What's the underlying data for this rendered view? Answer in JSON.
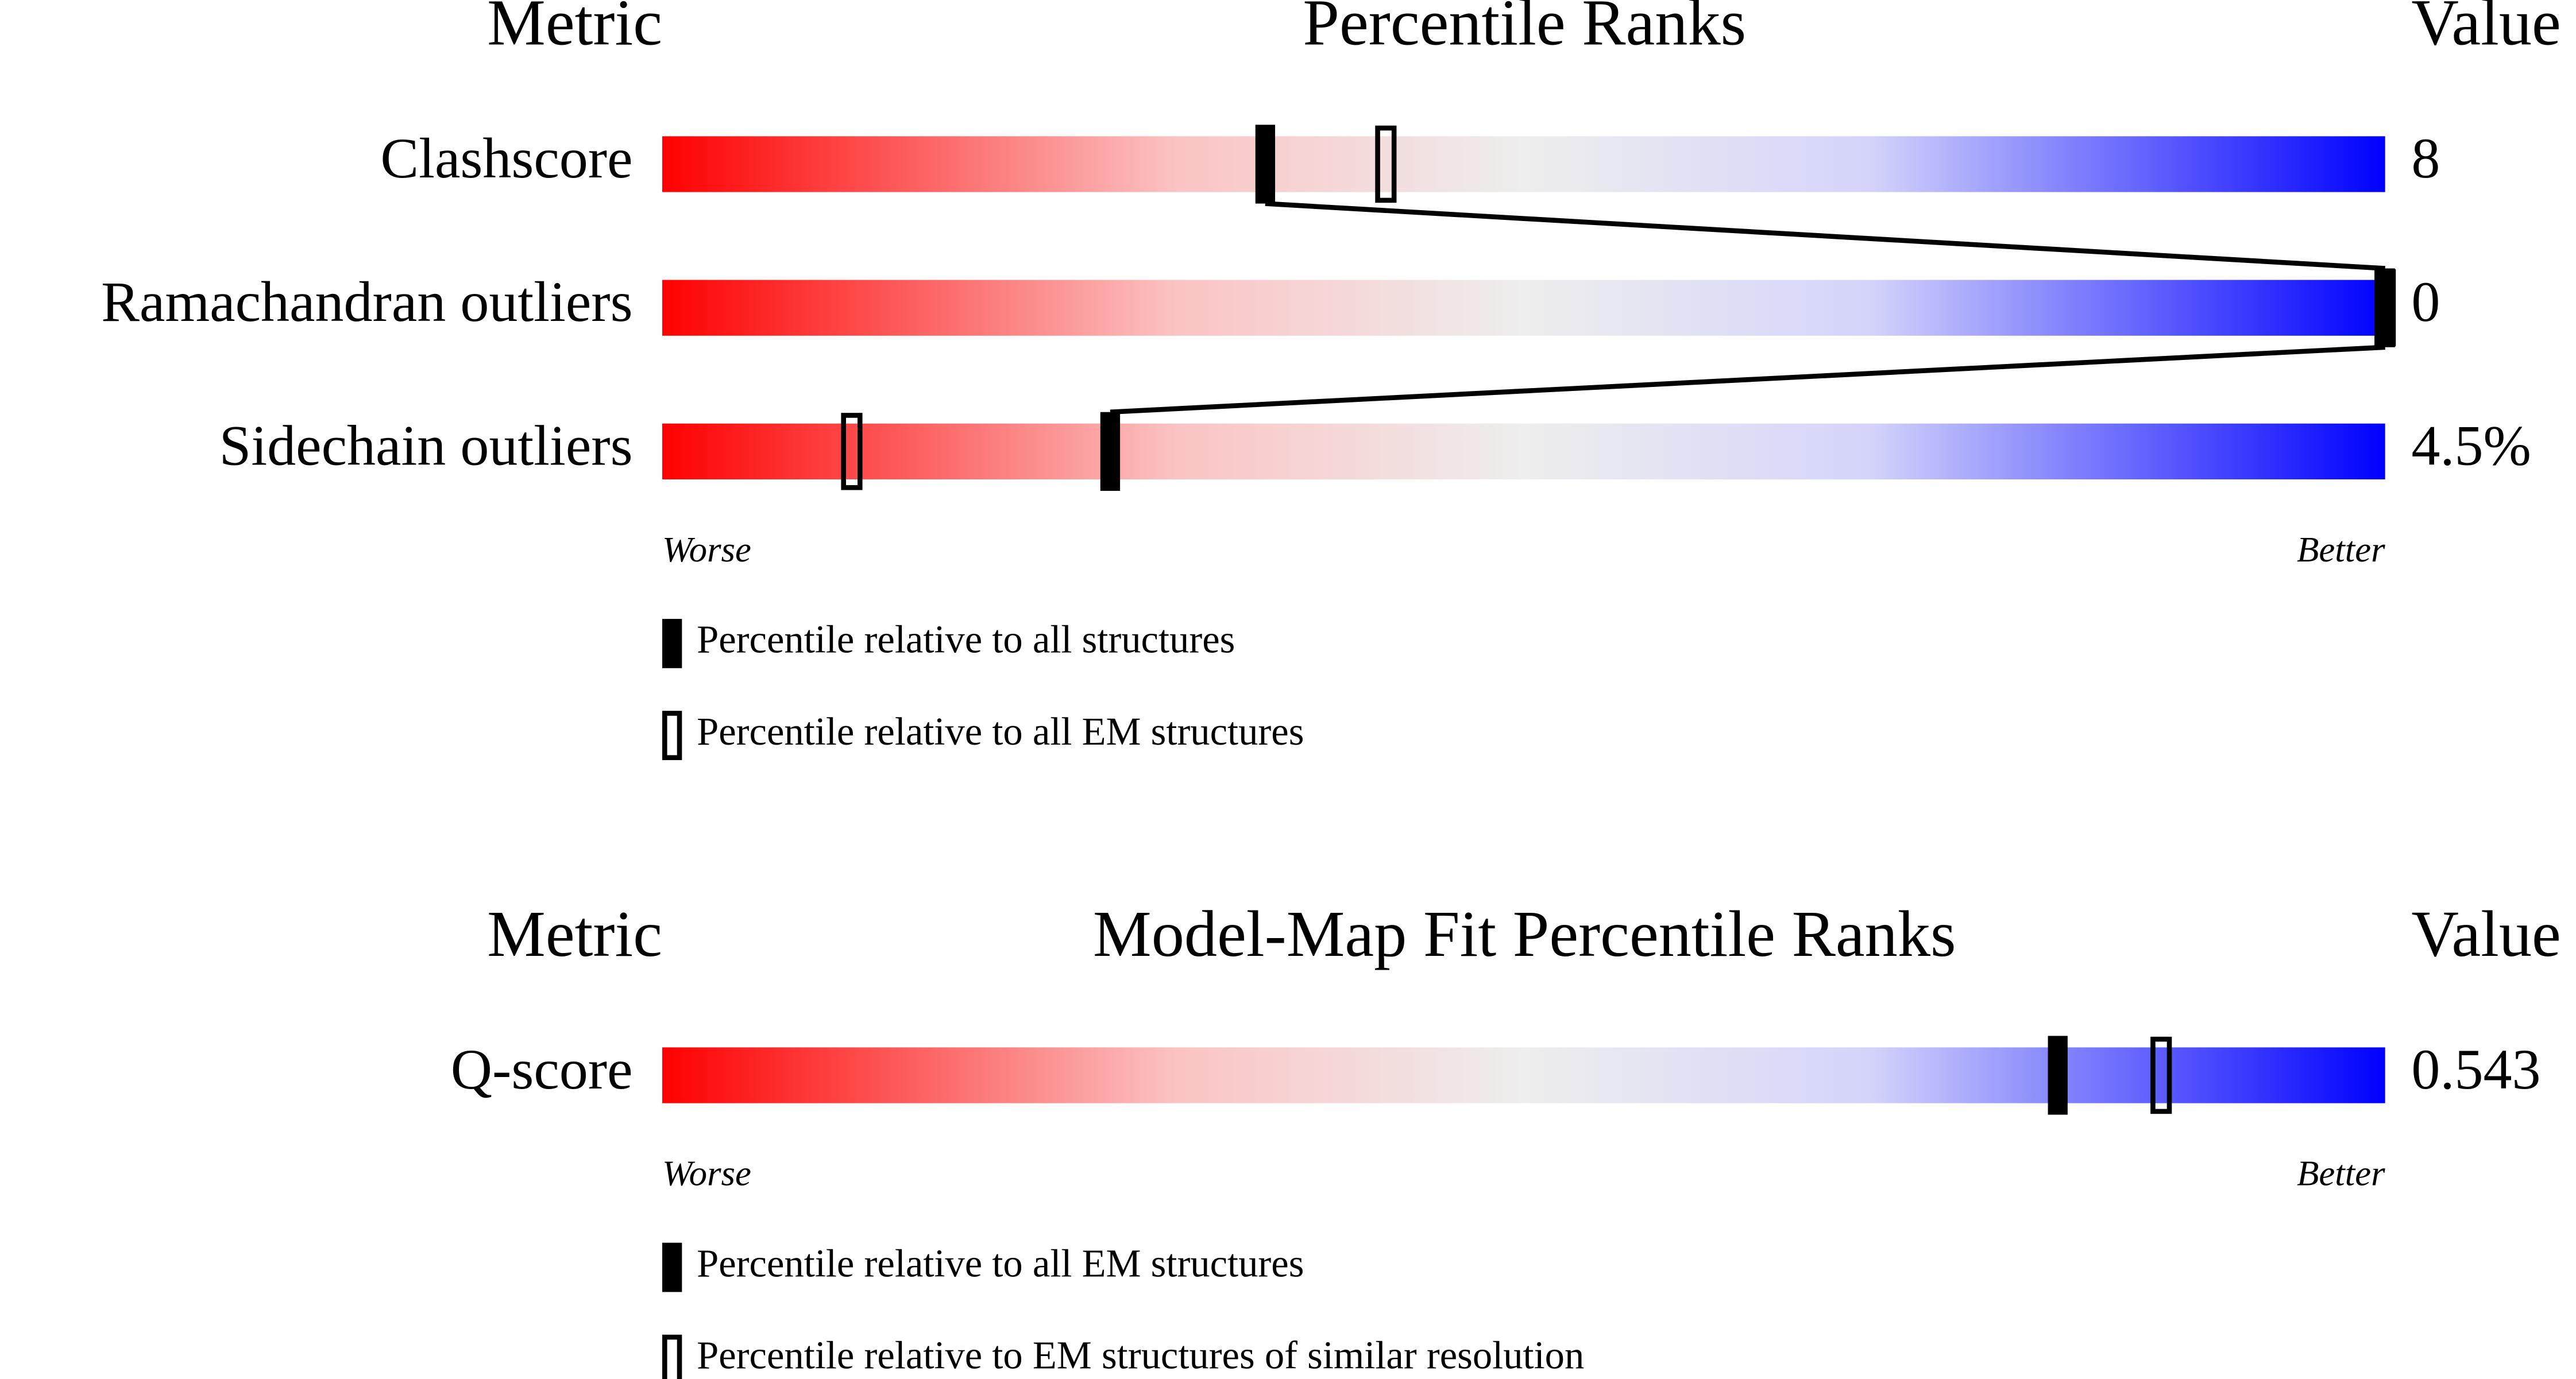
{
  "panels": [
    {
      "header": {
        "metric": "Metric",
        "title": "Percentile Ranks",
        "value": "Value"
      },
      "xlim": [
        0,
        100
      ],
      "rows": [
        {
          "metric": "Clashscore",
          "value": "8",
          "percentile_all": 35,
          "percentile_em": 42
        },
        {
          "metric": "Ramachandran outliers",
          "value": "0",
          "percentile_all": 100,
          "percentile_em": 100
        },
        {
          "metric": "Sidechain outliers",
          "value": "4.5%",
          "percentile_all": 26,
          "percentile_em": 11
        }
      ],
      "worse": "Worse",
      "better": "Better",
      "legend": [
        {
          "label": "Percentile relative to all structures",
          "style": "filled"
        },
        {
          "label": "Percentile relative to all EM structures",
          "style": "outline"
        }
      ]
    },
    {
      "header": {
        "metric": "Metric",
        "title": "Model-Map Fit Percentile Ranks",
        "value": "Value"
      },
      "xlim": [
        0,
        100
      ],
      "rows": [
        {
          "metric": "Q-score",
          "value": "0.543",
          "percentile_all": 81,
          "percentile_em": 87
        }
      ],
      "worse": "Worse",
      "better": "Better",
      "legend": [
        {
          "label": "Percentile relative to all EM structures",
          "style": "filled"
        },
        {
          "label": "Percentile relative to EM structures of similar resolution",
          "style": "outline"
        }
      ]
    }
  ]
}
